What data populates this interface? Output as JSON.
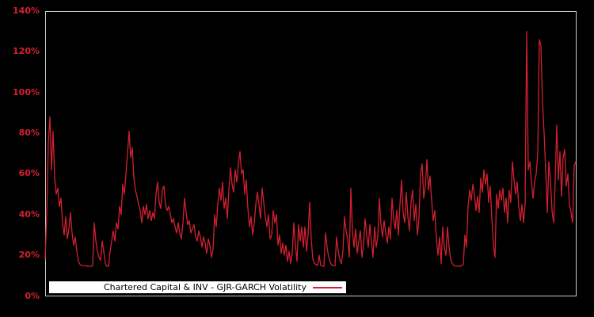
{
  "chart": {
    "legend_label": "Chartered Capital & INV - GJR-GARCH Volatility",
    "colors": {
      "line": "#d22030",
      "axis_label_text": "#d22030",
      "background": "#000000",
      "plot_border": "#c8c8c8",
      "legend_background": "#ffffff",
      "legend_text": "#000000"
    }
  },
  "chart_data": {
    "type": "line",
    "title": "",
    "xlabel": "",
    "ylabel": "",
    "ylim": [
      0,
      140
    ],
    "y_unit": "%",
    "y_tick_labels": [
      "0%",
      "20%",
      "40%",
      "60%",
      "80%",
      "100%",
      "120%",
      "140%"
    ],
    "x_tick_labels": [],
    "grid": false,
    "legend_position": "bottom-left-inside",
    "series": [
      {
        "name": "Chartered Capital & INV - GJR-GARCH Volatility",
        "unit": "percent",
        "values": [
          18,
          40,
          75,
          88,
          62,
          81,
          58,
          50,
          53,
          44,
          48,
          36,
          30,
          39,
          28,
          33,
          41,
          31,
          25,
          29,
          22,
          17,
          15.5,
          15,
          15,
          14.8,
          14.8,
          14.6,
          14.6,
          14.6,
          15,
          36,
          27,
          22,
          19,
          17.5,
          27,
          22,
          16,
          14.6,
          14.6,
          22,
          27,
          32,
          27,
          36,
          33,
          44,
          40,
          55,
          50,
          60,
          70,
          81,
          68,
          73,
          58,
          52,
          49,
          45,
          42,
          36,
          44,
          40,
          45,
          38,
          42,
          37,
          41,
          38,
          50,
          56,
          46,
          43,
          52,
          54,
          45,
          42,
          44,
          40,
          36,
          38,
          34,
          31,
          36,
          31,
          28,
          36,
          48,
          41,
          35,
          37,
          31,
          33,
          35,
          29,
          27,
          32,
          29,
          24,
          29,
          26,
          21,
          28,
          25,
          19,
          23,
          40,
          34,
          45,
          53,
          47,
          56,
          43,
          48,
          38,
          52,
          63,
          55,
          51,
          62,
          56,
          65,
          71,
          60,
          62,
          50,
          57,
          43,
          34,
          39,
          30,
          36,
          45,
          51,
          45,
          38,
          53,
          46,
          39,
          34,
          40,
          28,
          30,
          42,
          36,
          40,
          25,
          30,
          21,
          26,
          20,
          25,
          17,
          22,
          16,
          21,
          36,
          25,
          17,
          35,
          27,
          34,
          24,
          34,
          22,
          30,
          46,
          28,
          18,
          16,
          15.5,
          15,
          20,
          15,
          14.8,
          14.6,
          31,
          24,
          19,
          16.5,
          15.2,
          15,
          14.8,
          29,
          22,
          18,
          15.8,
          22,
          39,
          32,
          28,
          19,
          53,
          32,
          24,
          33,
          21,
          27,
          32,
          19,
          25,
          38,
          30,
          24,
          35,
          27,
          19,
          34,
          24,
          29,
          48,
          35,
          29,
          37,
          31,
          26,
          34,
          28,
          48,
          38,
          33,
          42,
          30,
          45,
          57,
          41,
          36,
          51,
          39,
          32,
          46,
          52,
          37,
          45,
          30,
          38,
          60,
          65,
          48,
          54,
          67,
          52,
          59,
          47,
          37,
          42,
          28,
          20,
          29,
          16,
          34,
          24,
          20,
          34,
          24,
          18,
          16,
          15,
          14.8,
          14.7,
          14.6,
          14.6,
          15,
          15.5,
          30,
          24,
          44,
          52,
          47,
          55,
          50,
          42,
          49,
          41,
          58,
          51,
          62,
          55,
          60,
          46,
          54,
          38,
          25,
          19,
          50,
          43,
          52,
          47,
          53,
          41,
          48,
          36,
          52,
          46,
          66,
          57,
          50,
          56,
          44,
          37,
          45,
          36,
          45,
          130,
          62,
          66,
          56,
          48,
          56,
          60,
          70,
          126,
          123,
          95,
          80,
          62,
          41,
          66,
          57,
          42,
          36,
          57,
          84,
          57,
          71,
          49,
          68,
          72,
          54,
          60,
          45,
          41,
          36,
          64,
          66
        ]
      }
    ]
  }
}
